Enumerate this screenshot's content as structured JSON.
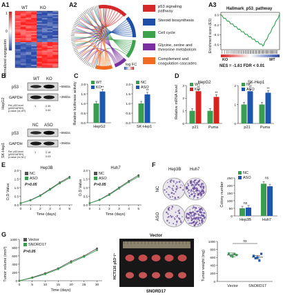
{
  "colors": {
    "green": "#3a9d4f",
    "blue": "#1d56b0",
    "red": "#d7231e",
    "heat_low": "#2b4aa8",
    "heat_high": "#d42020",
    "chord_p53": "#d62828",
    "chord_steroid": "#1d4fa8",
    "chord_cellcycle": "#3ba34b",
    "chord_gly": "#7a2fa0",
    "chord_complement": "#f26a1f",
    "colony_purple": "#6b4f9c"
  },
  "panels": {
    "a1": {
      "label": "A1",
      "groups": [
        "WT",
        "KO"
      ],
      "ylabel": "Normalized expression",
      "scale": [
        "1",
        "0",
        "-1"
      ]
    },
    "a2": {
      "label": "A2",
      "legend": [
        {
          "label": "p53 signaling pathway",
          "color": "#d62828"
        },
        {
          "label": "Steroid biosynthesis",
          "color": "#1d4fa8"
        },
        {
          "label": "Cell cycle",
          "color": "#3ba34b"
        },
        {
          "label": "Glycine, serine and threonine metabolism",
          "color": "#7a2fa0"
        },
        {
          "label": "Complement and coagulation cascades",
          "color": "#f26a1f"
        }
      ],
      "logfc": "log FC"
    },
    "a3": {
      "label": "A3",
      "title": "Hallmark_p53_pathway",
      "ylabel": "Enrichment score (ES)",
      "yticks": [
        "0.0",
        "-0.2",
        "-0.4",
        "-0.6"
      ],
      "left_group": "KO",
      "right_group": "WT",
      "stats": "NES = -1.61     FDR < 0.01"
    },
    "b": {
      "label": "B",
      "hepg2": {
        "cell": "HepG2",
        "lanes": [
          "WT",
          "KO"
        ],
        "rows": [
          "p53",
          "GAPDH"
        ],
        "mw": [
          "~55kDa",
          "~36kDa"
        ],
        "quant": [
          "Rel. p53 level",
          "(p53/GAPDH)",
          "p-value (vs WT)"
        ],
        "values": [
          "1",
          "2.35",
          "0.00"
        ]
      },
      "skhep1": {
        "cell": "SK-Hep1",
        "lanes": [
          "NC",
          "ASO"
        ],
        "rows": [
          "p53",
          "GAPDH"
        ],
        "mw": [
          "~55kDa",
          "~36kDa"
        ],
        "quant": [
          "Rel. p53 level",
          "(p53/GAPDH)",
          "p-value (vs NC)"
        ],
        "values": [
          "1",
          "2.18",
          "0.03"
        ]
      }
    },
    "c": {
      "label": "C",
      "ylabel": "Relative luciferase activity",
      "yticks": [
        "0.0",
        "0.5",
        "1.0",
        "1.5",
        "2.0"
      ],
      "sig": "**"
    },
    "d": {
      "label": "D",
      "ylabel": "Relative mRNA level",
      "yticks": [
        "0",
        "1",
        "2",
        "3"
      ],
      "sig": "**"
    },
    "e": {
      "label": "E",
      "ylabel": "O.D Value",
      "xlabel": "Time (days)",
      "pval": "P>0.05",
      "yticks": [
        "0.0",
        "0.5",
        "1.0",
        "1.5",
        "2.0"
      ]
    },
    "f": {
      "label": "F",
      "rows": [
        "NC",
        "ASO"
      ],
      "cols": [
        "Hep3B",
        "Huh7"
      ],
      "ylabel": "Colony number",
      "yticks": [
        "0",
        "50",
        "100",
        "150",
        "200",
        "250"
      ],
      "ns": "ns"
    },
    "g": {
      "label": "G",
      "ylabel": "Tumor volume (mm³)",
      "xlabel": "Time (days)",
      "pval": "P>0.05",
      "photo_title": "Vector",
      "photo_side": "HCT116 p53⁻/⁻",
      "photo_bottom": "SNORD17",
      "weight_ylabel": "Tumor weight (mg)",
      "weight_yticks": [
        "0",
        "200",
        "400",
        "600",
        "800",
        "1000"
      ],
      "ns": "ns"
    }
  },
  "chart_data": [
    {
      "type": "bar",
      "title": "HepG2",
      "ylabel": "Relative luciferase activity",
      "ylim": [
        0,
        2
      ],
      "categories": [
        "HepG2"
      ],
      "series": [
        {
          "name": "WT",
          "values": [
            1.0
          ]
        },
        {
          "name": "KO",
          "values": [
            1.62
          ]
        }
      ]
    },
    {
      "type": "bar",
      "title": "SK-Hep1",
      "ylabel": "Relative luciferase activity",
      "ylim": [
        0,
        2
      ],
      "categories": [
        "SK-Hep1"
      ],
      "series": [
        {
          "name": "NC",
          "values": [
            1.0
          ]
        },
        {
          "name": "ASO",
          "values": [
            1.47
          ]
        }
      ]
    },
    {
      "type": "bar",
      "title": "HepG2",
      "ylabel": "Relative mRNA level",
      "ylim": [
        0,
        3
      ],
      "categories": [
        "p21",
        "Puma"
      ],
      "series": [
        {
          "name": "WT",
          "values": [
            1.0,
            1.0
          ]
        },
        {
          "name": "KO",
          "values": [
            2.55,
            2.1
          ]
        }
      ]
    },
    {
      "type": "bar",
      "title": "SK-Hep1",
      "ylabel": "Relative mRNA level",
      "ylim": [
        0,
        2
      ],
      "categories": [
        "p21",
        "Puma"
      ],
      "series": [
        {
          "name": "NC",
          "values": [
            1.0,
            1.0
          ]
        },
        {
          "name": "ASO",
          "values": [
            1.7,
            1.62
          ]
        }
      ]
    },
    {
      "type": "line",
      "title": "Hep3B",
      "xlabel": "Time (days)",
      "ylabel": "O.D Value",
      "ylim": [
        0,
        2
      ],
      "x": [
        0,
        1,
        2,
        3,
        4,
        5
      ],
      "series": [
        {
          "name": "NC",
          "values": [
            0.1,
            0.28,
            0.55,
            0.92,
            1.3,
            1.62
          ]
        },
        {
          "name": "ASO",
          "values": [
            0.1,
            0.26,
            0.52,
            0.88,
            1.25,
            1.56
          ]
        }
      ]
    },
    {
      "type": "line",
      "title": "Huh7",
      "xlabel": "Time (days)",
      "ylabel": "O.D Value",
      "ylim": [
        0,
        2
      ],
      "x": [
        0,
        1,
        2,
        3,
        4,
        5
      ],
      "series": [
        {
          "name": "NC",
          "values": [
            0.1,
            0.3,
            0.62,
            1.0,
            1.38,
            1.72
          ]
        },
        {
          "name": "ASO",
          "values": [
            0.1,
            0.28,
            0.58,
            0.95,
            1.32,
            1.64
          ]
        }
      ]
    },
    {
      "type": "bar",
      "ylabel": "Colony number",
      "ylim": [
        0,
        250
      ],
      "categories": [
        "Hep3B",
        "Huh7"
      ],
      "series": [
        {
          "name": "NC",
          "values": [
            50,
            212
          ]
        },
        {
          "name": "ASO",
          "values": [
            55,
            195
          ]
        }
      ]
    },
    {
      "type": "line",
      "xlabel": "Time (days)",
      "ylabel": "Tumor volume (mm³)",
      "ylim": [
        0,
        1000
      ],
      "x": [
        0,
        5,
        10,
        15,
        20,
        25,
        30
      ],
      "series": [
        {
          "name": "Vector",
          "values": [
            0,
            80,
            180,
            300,
            470,
            600,
            780
          ]
        },
        {
          "name": "SNORD17",
          "values": [
            0,
            70,
            160,
            280,
            440,
            580,
            740
          ]
        }
      ]
    },
    {
      "type": "scatter",
      "ylabel": "Tumor weight (mg)",
      "ylim": [
        0,
        1000
      ],
      "categories": [
        "Vector",
        "SNORD17"
      ],
      "series": [
        {
          "name": "Vector",
          "values": [
            700,
            650,
            620,
            690,
            660
          ]
        },
        {
          "name": "SNORD17",
          "values": [
            640,
            580,
            600,
            520,
            690
          ]
        }
      ]
    }
  ]
}
